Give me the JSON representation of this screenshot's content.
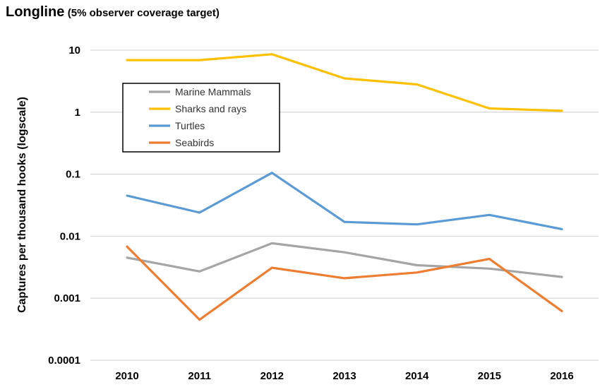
{
  "chart_data": {
    "type": "line",
    "title": "Longline",
    "subtitle": "(5% observer coverage target)",
    "xlabel": "",
    "ylabel": "Captures per thousand hooks (logscale)",
    "x": [
      "2010",
      "2011",
      "2012",
      "2013",
      "2014",
      "2015",
      "2016"
    ],
    "yscale": "log",
    "ylim": [
      0.0001,
      10
    ],
    "yticks": [
      "0.0001",
      "0.001",
      "0.01",
      "0.1",
      "1",
      "10"
    ],
    "grid": true,
    "legend_position": "upper-left",
    "series": [
      {
        "name": "Marine Mammals",
        "color": "#a5a5a5",
        "values": [
          0.0045,
          0.0027,
          0.0077,
          0.0055,
          0.0034,
          0.003,
          0.0022
        ]
      },
      {
        "name": "Sharks and rays",
        "color": "#ffc000",
        "values": [
          6.9,
          6.9,
          8.6,
          3.5,
          2.8,
          1.15,
          1.05
        ]
      },
      {
        "name": "Turtles",
        "color": "#5b9bd5",
        "values": [
          0.045,
          0.024,
          0.105,
          0.017,
          0.0155,
          0.022,
          0.013
        ]
      },
      {
        "name": "Seabirds",
        "color": "#ed7d31",
        "values": [
          0.0068,
          0.00045,
          0.0031,
          0.0021,
          0.0026,
          0.0043,
          0.00062
        ]
      }
    ]
  }
}
